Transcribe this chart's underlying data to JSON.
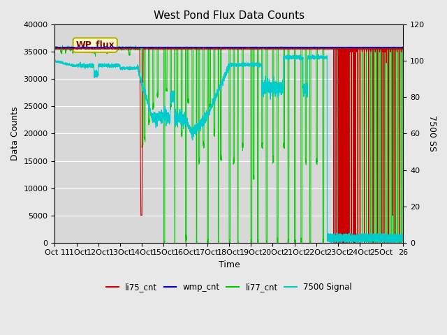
{
  "title": "West Pond Flux Data Counts",
  "xlabel": "Time",
  "ylabel_left": "Data Counts",
  "ylabel_right": "7500 SS",
  "ylim_left": [
    0,
    40000
  ],
  "ylim_right": [
    0,
    120
  ],
  "fig_facecolor": "#e8e8e8",
  "plot_bg_color": "#d8d8d8",
  "annotation_text": "WP_flux",
  "legend_entries": [
    "li75_cnt",
    "wmp_cnt",
    "li77_cnt",
    "7500 Signal"
  ],
  "legend_colors": [
    "#cc0000",
    "#0000cc",
    "#00cc00",
    "#00cccc"
  ],
  "x_tick_labels": [
    "Oct 1",
    "11Oct",
    "12Oct",
    "13Oct",
    "14Oct",
    "15Oct",
    "16Oct",
    "17Oct",
    "18Oct",
    "19Oct",
    "20Oct",
    "21Oct",
    "22Oct",
    "23Oct",
    "24Oct",
    "25Oct",
    "26"
  ],
  "x_tick_positions": [
    0,
    1,
    2,
    3,
    4,
    5,
    6,
    7,
    8,
    9,
    10,
    11,
    12,
    13,
    14,
    15,
    16
  ],
  "yticks_left": [
    0,
    5000,
    10000,
    15000,
    20000,
    25000,
    30000,
    35000,
    40000
  ],
  "yticks_right": [
    0,
    20,
    40,
    60,
    80,
    100,
    120
  ]
}
